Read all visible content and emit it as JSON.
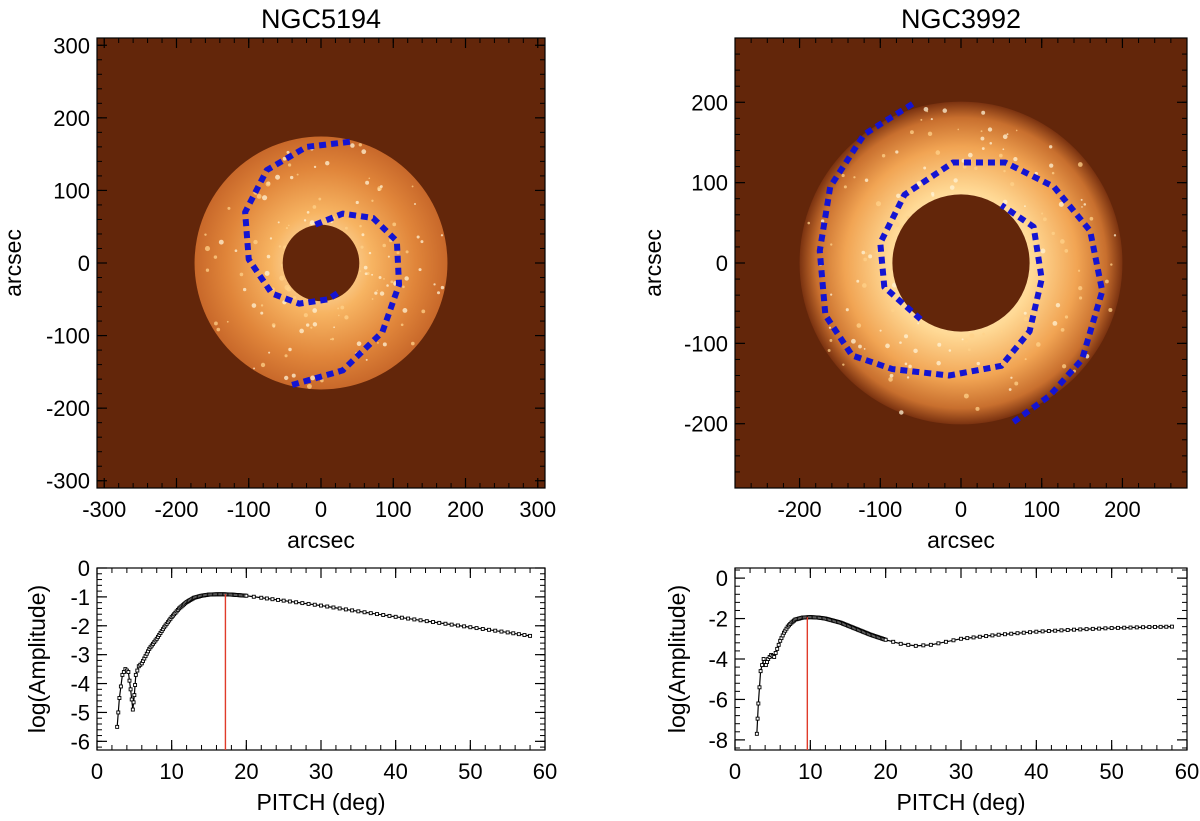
{
  "chart_data": [
    {
      "type": "heatmap",
      "title": "NGC5194",
      "xlabel": "arcsec",
      "ylabel": "arcsec",
      "xlim": [
        -310,
        310
      ],
      "ylim": [
        -310,
        310
      ],
      "xticks": [
        -300,
        -200,
        -100,
        0,
        100,
        200,
        300
      ],
      "yticks": [
        -300,
        -200,
        -100,
        0,
        100,
        200,
        300
      ],
      "image": {
        "inner_radius": 53,
        "outer_radius": 175
      },
      "colors": {
        "background": "#63260a",
        "disk": "#e0853a",
        "arms": "#1414d2"
      },
      "arms": [
        {
          "points": [
            [
              40,
              167
            ],
            [
              -20,
              160
            ],
            [
              -75,
              128
            ],
            [
              -105,
              70
            ],
            [
              -100,
              5
            ],
            [
              -68,
              -42
            ],
            [
              -30,
              -56
            ],
            [
              10,
              -50
            ],
            [
              25,
              -40
            ]
          ]
        },
        {
          "points": [
            [
              -40,
              -168
            ],
            [
              30,
              -148
            ],
            [
              85,
              -95
            ],
            [
              108,
              -30
            ],
            [
              105,
              30
            ],
            [
              72,
              62
            ],
            [
              30,
              68
            ],
            [
              -10,
              52
            ]
          ]
        }
      ],
      "grid": false
    },
    {
      "type": "heatmap",
      "title": "NGC3992",
      "xlabel": "arcsec",
      "ylabel": "arcsec",
      "xlim": [
        -280,
        280
      ],
      "ylim": [
        -280,
        280
      ],
      "xticks": [
        -200,
        -100,
        0,
        100,
        200
      ],
      "yticks": [
        -200,
        -100,
        0,
        100,
        200
      ],
      "image": {
        "inner_radius": 85,
        "outer_radius": 200
      },
      "colors": {
        "background": "#63260a",
        "disk": "#e5903f",
        "arms": "#1414d2"
      },
      "arms": [
        {
          "points": [
            [
              -60,
              198
            ],
            [
              -120,
              160
            ],
            [
              -162,
              95
            ],
            [
              -175,
              15
            ],
            [
              -168,
              -65
            ],
            [
              -135,
              -115
            ],
            [
              -85,
              -132
            ],
            [
              -15,
              -140
            ],
            [
              50,
              -128
            ],
            [
              85,
              -85
            ],
            [
              100,
              -20
            ],
            [
              90,
              45
            ],
            [
              50,
              72
            ]
          ]
        },
        {
          "points": [
            [
              -50,
              -70
            ],
            [
              -95,
              -30
            ],
            [
              -100,
              25
            ],
            [
              -70,
              85
            ],
            [
              -10,
              125
            ],
            [
              55,
              125
            ],
            [
              115,
              95
            ],
            [
              160,
              40
            ],
            [
              175,
              -35
            ],
            [
              150,
              -120
            ],
            [
              110,
              -165
            ],
            [
              65,
              -198
            ]
          ]
        }
      ],
      "grid": false
    },
    {
      "type": "line",
      "xlabel": "PITCH (deg)",
      "ylabel": "log(Amplitude)",
      "xlim": [
        0,
        60
      ],
      "ylim": [
        -6.3,
        0
      ],
      "xticks": [
        0,
        10,
        20,
        30,
        40,
        50,
        60
      ],
      "yticks": [
        0,
        -1,
        -2,
        -3,
        -4,
        -5,
        -6
      ],
      "peak_pitch": 17.2,
      "colors": {
        "line": "#000000",
        "marker": "#000000",
        "peak": "#e03b2a"
      },
      "series": [
        {
          "x": [
            2.7,
            3.0,
            3.4,
            3.8,
            4.2,
            4.5,
            4.8,
            5.0,
            5.2,
            5.6,
            6.0,
            7.0,
            8.0,
            9.0,
            10.0,
            11.0,
            12.0,
            13.0,
            14.0,
            15.0,
            16.0,
            17.0,
            18.0,
            20.0,
            22.0,
            25.0,
            30.0,
            35.0,
            40.0,
            45.0,
            50.0,
            55.0,
            58.0
          ],
          "y": [
            -5.5,
            -4.5,
            -3.7,
            -3.5,
            -3.6,
            -4.2,
            -4.9,
            -4.4,
            -3.7,
            -3.4,
            -3.3,
            -2.8,
            -2.45,
            -2.05,
            -1.7,
            -1.4,
            -1.18,
            -1.03,
            -0.96,
            -0.92,
            -0.91,
            -0.91,
            -0.92,
            -0.96,
            -1.03,
            -1.13,
            -1.3,
            -1.5,
            -1.69,
            -1.87,
            -2.05,
            -2.23,
            -2.35
          ]
        }
      ],
      "grid": false
    },
    {
      "type": "line",
      "xlabel": "PITCH (deg)",
      "ylabel": "log(Amplitude)",
      "xlim": [
        0,
        60
      ],
      "ylim": [
        -8.5,
        0.5
      ],
      "xticks": [
        0,
        10,
        20,
        30,
        40,
        50,
        60
      ],
      "yticks": [
        0,
        -2,
        -4,
        -6,
        -8
      ],
      "peak_pitch": 9.6,
      "colors": {
        "line": "#000000",
        "marker": "#000000",
        "peak": "#e03b2a"
      },
      "series": [
        {
          "x": [
            2.9,
            3.1,
            3.4,
            3.8,
            4.1,
            4.4,
            4.8,
            5.2,
            5.6,
            6.0,
            6.5,
            7.0,
            7.5,
            8.0,
            9.0,
            10.0,
            11.0,
            12.0,
            14.0,
            16.0,
            18.0,
            20.0,
            22.0,
            24.0,
            26.0,
            28.0,
            30.0,
            35.0,
            40.0,
            45.0,
            50.0,
            55.0,
            58.0
          ],
          "y": [
            -7.7,
            -6.2,
            -4.6,
            -4.0,
            -4.3,
            -4.0,
            -3.8,
            -3.9,
            -3.5,
            -3.1,
            -2.7,
            -2.4,
            -2.2,
            -2.05,
            -1.95,
            -1.93,
            -1.95,
            -2.0,
            -2.2,
            -2.5,
            -2.8,
            -3.05,
            -3.25,
            -3.35,
            -3.3,
            -3.15,
            -3.0,
            -2.8,
            -2.65,
            -2.55,
            -2.47,
            -2.42,
            -2.4
          ]
        }
      ],
      "grid": false
    }
  ]
}
